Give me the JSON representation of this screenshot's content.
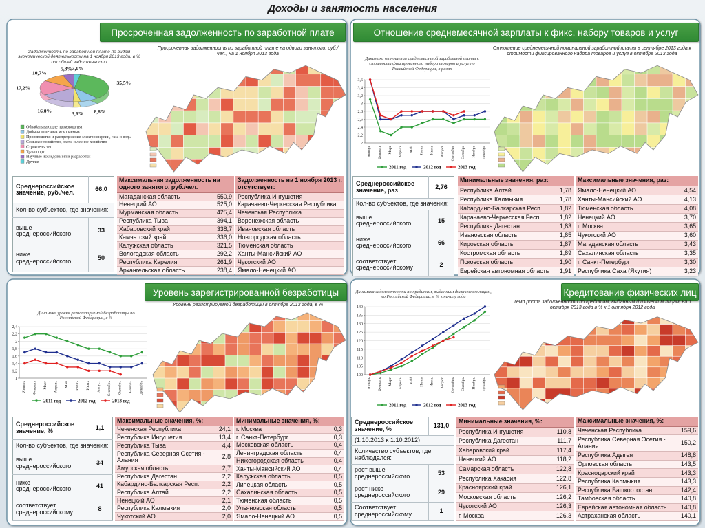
{
  "title": "Доходы и занятость населения",
  "chart_data": [
    {
      "type": "pie",
      "title": "Задолженность по заработной плате по видам экономической деятельности на 1 ноября 2013 года, в % от общей задолженности",
      "categories": [
        "Обрабатывающие производства",
        "Добыча полезных ископаемых",
        "Производство и распределение электроэнергии, газа и воды",
        "Сельское хозяйство, охота и лесное хозяйство",
        "Строительство",
        "Транспорт",
        "Научные исследования и разработки",
        "Другие"
      ],
      "values": [
        35.5,
        8.8,
        3.6,
        16.0,
        17.2,
        10.7,
        5.3,
        3.0
      ],
      "value_labels": [
        "35,5%",
        "8,8%",
        "3,6%",
        "16,0%",
        "17,2%",
        "10,7%",
        "5,3%",
        "3,0%"
      ],
      "colors": [
        "#5cb85c",
        "#8fc7e8",
        "#f2e36b",
        "#b7a9d6",
        "#f08fb0",
        "#f5a54a",
        "#9b6fc2",
        "#5fd0d8"
      ]
    },
    {
      "type": "line",
      "title": "Динамика отношения среднемесячной заработной платы к стоимости фиксированного набора товаров и услуг по Российской Федерации, в разах",
      "categories": [
        "Январь",
        "Февраль",
        "Март",
        "Апрель",
        "Май",
        "Июнь",
        "Июль",
        "Август",
        "Сентябрь",
        "Октябрь",
        "Ноябрь",
        "Декабрь"
      ],
      "series": [
        {
          "name": "2011 год",
          "color": "#2e9e3a",
          "values": [
            3.1,
            2.3,
            2.2,
            2.4,
            2.4,
            2.5,
            2.6,
            2.6,
            2.5,
            2.6,
            2.6,
            2.6
          ]
        },
        {
          "name": "2012 год",
          "color": "#1f2f8f",
          "values": [
            3.6,
            2.6,
            2.6,
            2.7,
            2.7,
            2.8,
            2.8,
            2.8,
            2.6,
            2.7,
            2.7,
            2.8
          ]
        },
        {
          "name": "2013 год",
          "color": "#e02020",
          "values": [
            3.6,
            2.7,
            2.6,
            2.8,
            2.8,
            2.8,
            2.8,
            2.8,
            2.7,
            2.8,
            null,
            null
          ]
        }
      ],
      "ylim": [
        2,
        3.6
      ],
      "yticks": [
        2,
        {
          "value": 2.2,
          "label": "2,2"
        },
        {
          "value": 2.4,
          "label": "2,4"
        },
        {
          "value": 2.6,
          "label": "2,6"
        },
        {
          "value": 2.8,
          "label": "2,8"
        },
        3,
        {
          "value": 3.2,
          "label": "3,2"
        },
        {
          "value": 3.4,
          "label": "3,4"
        },
        {
          "value": 3.6,
          "label": "3,6"
        }
      ],
      "grid": true
    },
    {
      "type": "line",
      "title": "Динамика уровня регистрируемой безработицы по Российской Федерации, в %",
      "categories": [
        "Январь",
        "Февраль",
        "Март",
        "Апрель",
        "Май",
        "Июнь",
        "Июль",
        "Август",
        "Сентябрь",
        "Октябрь",
        "Ноябрь",
        "Декабрь"
      ],
      "series": [
        {
          "name": "2011 год",
          "color": "#2e9e3a",
          "values": [
            2.1,
            2.2,
            2.2,
            2.1,
            2.0,
            1.9,
            1.8,
            1.8,
            1.7,
            1.6,
            1.6,
            1.7
          ]
        },
        {
          "name": "2012 год",
          "color": "#1f2f8f",
          "values": [
            1.7,
            1.8,
            1.7,
            1.7,
            1.6,
            1.5,
            1.4,
            1.4,
            1.3,
            1.3,
            1.3,
            1.4
          ]
        },
        {
          "name": "2013 год",
          "color": "#e02020",
          "values": [
            1.4,
            1.5,
            1.4,
            1.4,
            1.3,
            1.3,
            1.2,
            1.2,
            1.2,
            1.1,
            null,
            null
          ]
        }
      ],
      "ylim": [
        1,
        2.4
      ],
      "yticks": [
        1,
        {
          "value": 1.2,
          "label": "1,2"
        },
        {
          "value": 1.4,
          "label": "1,4"
        },
        {
          "value": 1.6,
          "label": "1,6"
        },
        {
          "value": 1.8,
          "label": "1,8"
        },
        2,
        {
          "value": 2.2,
          "label": "2,2"
        },
        {
          "value": 2.4,
          "label": "2,4"
        }
      ],
      "grid": true
    },
    {
      "type": "line",
      "title": "Динамика задолженности по кредитам, выданным физическим лицам, по Российской Федерации, в % к началу года",
      "categories": [
        "Январь",
        "Февраль",
        "Март",
        "Апрель",
        "Май",
        "Июнь",
        "Июль",
        "Август",
        "Сентябрь",
        "Октябрь",
        "Ноябрь",
        "Декабрь"
      ],
      "series": [
        {
          "name": "2011 год",
          "color": "#2e9e3a",
          "values": [
            100,
            101,
            103,
            105,
            108,
            112,
            116,
            120,
            124,
            128,
            132,
            137
          ]
        },
        {
          "name": "2012 год",
          "color": "#1f2f8f",
          "values": [
            100,
            102,
            105,
            109,
            113,
            117,
            121,
            125,
            129,
            133,
            136,
            140
          ]
        },
        {
          "name": "2013 год",
          "color": "#e02020",
          "values": [
            100,
            102,
            104,
            107,
            111,
            114,
            117,
            120,
            122,
            null,
            null,
            null
          ]
        }
      ],
      "ylim": [
        100,
        140
      ],
      "yticks": [
        100,
        105,
        110,
        115,
        120,
        125,
        130,
        135,
        140
      ],
      "grid": true
    }
  ],
  "panels": [
    {
      "header": "Просроченная задолженность по заработной плате",
      "map_title": "Просроченная задолженность по заработной плате на одного занятого, руб./чел., на 1 ноября 2013 года",
      "summary": [
        [
          "Среднероссийское значение, руб./чел.",
          "66,0"
        ],
        [
          "Кол-во субъектов, где значения:"
        ],
        [
          "выше среднероссийского",
          "33"
        ],
        [
          "ниже среднероссийского",
          "50"
        ]
      ],
      "tables": [
        {
          "title": "Максимальная задолженность на одного занятого, руб./чел.",
          "rows": [
            [
              "Магаданская область",
              "550,9"
            ],
            [
              "Ненецкий АО",
              "525,0"
            ],
            [
              "Мурманская область",
              "425,4"
            ],
            [
              "Республика Тыва",
              "394,1"
            ],
            [
              "Хабаровский край",
              "338,7"
            ],
            [
              "Камчатский край",
              "336,0"
            ],
            [
              "Калужская область",
              "321,5"
            ],
            [
              "Вологодская область",
              "292,2"
            ],
            [
              "Республика Карелия",
              "261,9"
            ],
            [
              "Архангельская область",
              "238,4"
            ]
          ]
        },
        {
          "title": "Задолженность на 1 ноября 2013 г. отсутствует:",
          "rows": [
            [
              "Республика Ингушетия"
            ],
            [
              "Карачаево-Черкесская Республика"
            ],
            [
              "Чеченская Республика"
            ],
            [
              "Воронежская область"
            ],
            [
              "Ивановская область"
            ],
            [
              "Новгородская область"
            ],
            [
              "Тюменская область"
            ],
            [
              "Ханты-Мансийский АО"
            ],
            [
              "Чукотский АО"
            ],
            [
              "Ямало-Ненецкий АО"
            ]
          ]
        }
      ]
    },
    {
      "header": "Отношение среднемесячной зарплаты к фикс. набору товаров и услуг",
      "map_title": "Отношение среднемесячной номинальной заработной платы в сентябре 2013 года к стоимости фиксированного набора товаров и услуг в октябре 2013 года",
      "summary": [
        [
          "Среднероссийское значение, раз",
          "2,76"
        ],
        [
          "Кол-во субъектов, где значения:"
        ],
        [
          "выше среднероссийского",
          "15"
        ],
        [
          "ниже среднероссийского",
          "66"
        ],
        [
          "соответствует среднероссийскому",
          "2"
        ]
      ],
      "tables": [
        {
          "title": "Минимальные значения, раз:",
          "rows": [
            [
              "Республика Алтай",
              "1,78"
            ],
            [
              "Республика Калмыкия",
              "1,78"
            ],
            [
              "Кабардино-Балкарская Респ.",
              "1,82"
            ],
            [
              "Карачаево-Черкесская Респ.",
              "1,82"
            ],
            [
              "Республика Дагестан",
              "1,83"
            ],
            [
              "Ивановская область",
              "1,85"
            ],
            [
              "Кировская область",
              "1,87"
            ],
            [
              "Костромская область",
              "1,89"
            ],
            [
              "Псковская область",
              "1,90"
            ],
            [
              "Еврейская автономная область",
              "1,91"
            ]
          ]
        },
        {
          "title": "Максимальные значения, раз:",
          "rows": [
            [
              "Ямало-Ненецкий АО",
              "4,54"
            ],
            [
              "Ханты-Мансийский АО",
              "4,13"
            ],
            [
              "Тюменская область",
              "4,08"
            ],
            [
              "Ненецкий АО",
              "3,70"
            ],
            [
              "г. Москва",
              "3,65"
            ],
            [
              "Чукотский АО",
              "3,60"
            ],
            [
              "Магаданская область",
              "3,43"
            ],
            [
              "Сахалинская область",
              "3,35"
            ],
            [
              "г. Санкт-Петербург",
              "3,30"
            ],
            [
              "Республика Саха (Якутия)",
              "3,23"
            ]
          ]
        }
      ]
    },
    {
      "header": "Уровень зарегистрированной безработицы",
      "map_title": "Уровень регистрируемой безработицы в октябре 2013 года, в %",
      "summary": [
        [
          "Среднероссийское значение, %",
          "1,1"
        ],
        [
          "Кол-во субъектов, где значения:"
        ],
        [
          "выше среднероссийского",
          "34"
        ],
        [
          "ниже среднероссийского",
          "41"
        ],
        [
          "соответствует среднероссийскому",
          "8"
        ]
      ],
      "tables": [
        {
          "title": "Максимальные значения, %:",
          "rows": [
            [
              "Чеченская Республика",
              "24,1"
            ],
            [
              "Республика Ингушетия",
              "13,4"
            ],
            [
              "Республика Тыва",
              "4,4"
            ],
            [
              "Республика Северная Осетия - Алания",
              "2,8"
            ],
            [
              "Амурская область",
              "2,7"
            ],
            [
              "Республика Дагестан",
              "2,2"
            ],
            [
              "Кабардино-Балкарская Респ.",
              "2,2"
            ],
            [
              "Республика Алтай",
              "2,2"
            ],
            [
              "Ненецкий АО",
              "2,1"
            ],
            [
              "Республика Калмыкия",
              "2,0"
            ],
            [
              "Чукотский АО",
              "2,0"
            ]
          ]
        },
        {
          "title": "Минимальные значения, %:",
          "rows": [
            [
              "г. Москва",
              "0,3"
            ],
            [
              "г. Санкт-Петербург",
              "0,3"
            ],
            [
              "Московская область",
              "0,4"
            ],
            [
              "Ленинградская область",
              "0,4"
            ],
            [
              "Нижегородская область",
              "0,4"
            ],
            [
              "Ханты-Мансийский АО",
              "0,4"
            ],
            [
              "Калужская область",
              "0,5"
            ],
            [
              "Липецкая область",
              "0,5"
            ],
            [
              "Сахалинская область",
              "0,5"
            ],
            [
              "Тюменская область",
              "0,5"
            ],
            [
              "Ульяновская область",
              "0,5"
            ],
            [
              "Ямало-Ненецкий АО",
              "0,5"
            ]
          ]
        }
      ]
    },
    {
      "header": "Кредитование физических лиц",
      "map_title": "Темп роста задолженности по кредитам, выданным физическим лицам, на 1 октября 2013 года в % к 1 октября 2012 года",
      "summary": [
        [
          "Среднероссийское значение, %",
          "131,0"
        ],
        [
          "(1.10.2013 к 1.10.2012)"
        ],
        [
          "Количество субъектов, где наблюдался:"
        ],
        [
          "рост выше среднероссийского",
          "53"
        ],
        [
          "рост ниже среднероссийского",
          "29"
        ],
        [
          "Соответствует среднероссийскому",
          "1"
        ]
      ],
      "tables": [
        {
          "title": "Минимальные значения, %:",
          "rows": [
            [
              "Республика Ингушетия",
              "110,8"
            ],
            [
              "Республика Дагестан",
              "111,7"
            ],
            [
              "Хабаровский край",
              "117,4"
            ],
            [
              "Ненецкий АО",
              "118,2"
            ],
            [
              "Самарская область",
              "122,8"
            ],
            [
              "Республика Хакасия",
              "122,8"
            ],
            [
              "Красноярский край",
              "126,1"
            ],
            [
              "Московская область",
              "126,2"
            ],
            [
              "Чукотский АО",
              "126,3"
            ],
            [
              "г. Москва",
              "126,3"
            ]
          ]
        },
        {
          "title": "Максимальные значения, %:",
          "rows": [
            [
              "Чеченская Республика",
              "159,6"
            ],
            [
              "Республика Северная Осетия - Алания",
              "150,2"
            ],
            [
              "Республика Адыгея",
              "148,8"
            ],
            [
              "Орловская область",
              "143,5"
            ],
            [
              "Краснодарский край",
              "143,3"
            ],
            [
              "Республика Калмыкия",
              "143,3"
            ],
            [
              "Республика Башкортостан",
              "142,4"
            ],
            [
              "Тамбовская область",
              "140,8"
            ],
            [
              "Еврейская автономная область",
              "140,8"
            ],
            [
              "Астраханская область",
              "140,1"
            ]
          ]
        }
      ]
    }
  ]
}
